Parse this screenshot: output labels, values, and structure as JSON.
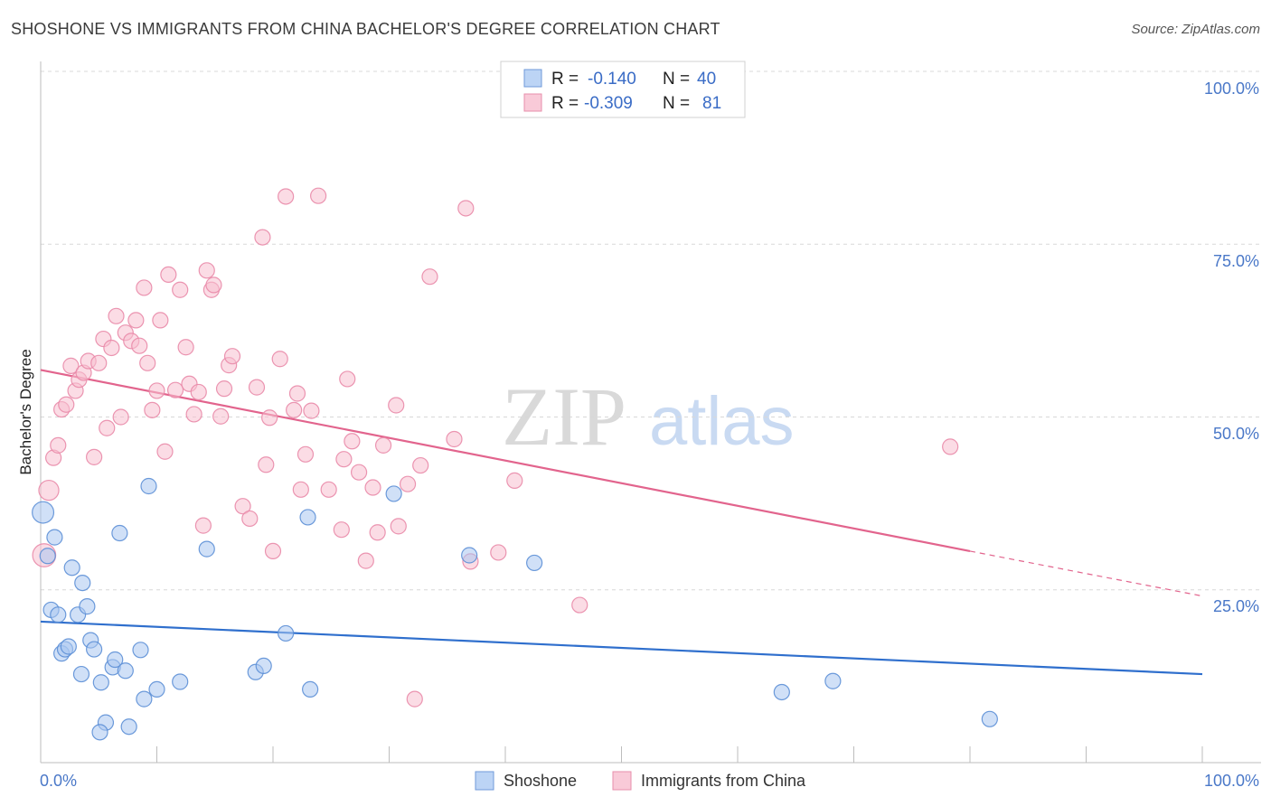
{
  "header": {
    "title": "SHOSHONE VS IMMIGRANTS FROM CHINA BACHELOR'S DEGREE CORRELATION CHART",
    "source": "Source: ZipAtlas.com"
  },
  "watermark": {
    "zip": "ZIP",
    "atlas": "atlas"
  },
  "legend_top": {
    "rows": [
      {
        "r_label": "R =",
        "r_value": "-0.140",
        "n_label": "N =",
        "n_value": "40",
        "color": "#9fc0ef"
      },
      {
        "r_label": "R =",
        "r_value": "-0.309",
        "n_label": "N =",
        "n_value": "81",
        "color": "#f4b8ca"
      }
    ]
  },
  "legend_bottom": {
    "items": [
      "Shoshone",
      "Immigrants from China"
    ]
  },
  "colors": {
    "shoshone_fill": "#a9c7f0",
    "shoshone_stroke": "#5c8fd6",
    "shoshone_line": "#2f6fcd",
    "china_fill": "#f7bfd0",
    "china_stroke": "#e98aa8",
    "china_line": "#e2648d",
    "grid": "#d8d8d8",
    "axis_text": "#4a78c8"
  },
  "chart_data": {
    "type": "scatter",
    "title": "SHOSHONE VS IMMIGRANTS FROM CHINA BACHELOR'S DEGREE CORRELATION CHART",
    "xlabel": "",
    "ylabel": "Bachelor's Degree",
    "xlim": [
      0,
      100
    ],
    "ylim": [
      0,
      100
    ],
    "x_tick_labels": [
      "0.0%",
      "100.0%"
    ],
    "y_tick_labels": [
      "100.0%",
      "75.0%",
      "50.0%",
      "25.0%"
    ],
    "y_ticks": [
      100,
      75,
      50,
      25
    ],
    "grid": true,
    "legend_position": "top-center",
    "series": [
      {
        "name": "Shoshone",
        "r": -0.14,
        "n": 40,
        "trend": {
          "x": [
            0,
            100
          ],
          "y": [
            20.4,
            12.8
          ]
        },
        "points": [
          {
            "x": 0.2,
            "y": 36.2,
            "s": 1.4
          },
          {
            "x": 0.6,
            "y": 29.9
          },
          {
            "x": 0.9,
            "y": 22.1
          },
          {
            "x": 1.2,
            "y": 32.6
          },
          {
            "x": 1.5,
            "y": 21.4
          },
          {
            "x": 1.8,
            "y": 15.8
          },
          {
            "x": 2.1,
            "y": 16.4
          },
          {
            "x": 2.4,
            "y": 16.8
          },
          {
            "x": 2.7,
            "y": 28.2
          },
          {
            "x": 3.2,
            "y": 21.4
          },
          {
            "x": 3.5,
            "y": 12.8
          },
          {
            "x": 3.6,
            "y": 26.0
          },
          {
            "x": 4.0,
            "y": 22.6
          },
          {
            "x": 4.3,
            "y": 17.7
          },
          {
            "x": 4.6,
            "y": 16.4
          },
          {
            "x": 5.2,
            "y": 11.6
          },
          {
            "x": 5.6,
            "y": 5.8
          },
          {
            "x": 5.1,
            "y": 4.4
          },
          {
            "x": 6.2,
            "y": 13.8
          },
          {
            "x": 6.4,
            "y": 14.9
          },
          {
            "x": 6.8,
            "y": 33.2
          },
          {
            "x": 7.3,
            "y": 13.3
          },
          {
            "x": 7.6,
            "y": 5.2
          },
          {
            "x": 8.6,
            "y": 16.3
          },
          {
            "x": 8.9,
            "y": 9.2
          },
          {
            "x": 9.3,
            "y": 40.0
          },
          {
            "x": 10.0,
            "y": 10.6
          },
          {
            "x": 12.0,
            "y": 11.7
          },
          {
            "x": 14.3,
            "y": 30.9
          },
          {
            "x": 18.5,
            "y": 13.1
          },
          {
            "x": 19.2,
            "y": 14.0
          },
          {
            "x": 21.1,
            "y": 18.7
          },
          {
            "x": 23.0,
            "y": 35.5
          },
          {
            "x": 23.2,
            "y": 10.6
          },
          {
            "x": 30.4,
            "y": 38.9
          },
          {
            "x": 36.9,
            "y": 30.0
          },
          {
            "x": 42.5,
            "y": 28.9
          },
          {
            "x": 63.8,
            "y": 10.2
          },
          {
            "x": 68.2,
            "y": 11.8
          },
          {
            "x": 81.7,
            "y": 6.3
          }
        ]
      },
      {
        "name": "Immigrants from China",
        "r": -0.309,
        "n": 81,
        "trend": {
          "x": [
            0,
            80
          ],
          "y": [
            56.8,
            30.6
          ]
        },
        "trend_dashed": {
          "x": [
            80,
            100
          ],
          "y": [
            30.6,
            24.1
          ]
        },
        "points": [
          {
            "x": 0.3,
            "y": 30.0,
            "s": 1.5
          },
          {
            "x": 0.7,
            "y": 39.4,
            "s": 1.3
          },
          {
            "x": 1.1,
            "y": 44.1
          },
          {
            "x": 1.5,
            "y": 45.9
          },
          {
            "x": 1.8,
            "y": 51.1
          },
          {
            "x": 2.2,
            "y": 51.8
          },
          {
            "x": 2.6,
            "y": 57.4
          },
          {
            "x": 3.0,
            "y": 53.8
          },
          {
            "x": 3.3,
            "y": 55.4
          },
          {
            "x": 3.7,
            "y": 56.4
          },
          {
            "x": 4.1,
            "y": 58.1
          },
          {
            "x": 4.6,
            "y": 44.2
          },
          {
            "x": 5.0,
            "y": 57.8
          },
          {
            "x": 5.4,
            "y": 61.3
          },
          {
            "x": 5.7,
            "y": 48.4
          },
          {
            "x": 6.1,
            "y": 60.0
          },
          {
            "x": 6.5,
            "y": 64.6
          },
          {
            "x": 6.9,
            "y": 50.0
          },
          {
            "x": 7.3,
            "y": 62.2
          },
          {
            "x": 7.8,
            "y": 61.0
          },
          {
            "x": 8.2,
            "y": 64.0
          },
          {
            "x": 8.5,
            "y": 60.3
          },
          {
            "x": 8.9,
            "y": 68.7
          },
          {
            "x": 9.2,
            "y": 57.8
          },
          {
            "x": 9.6,
            "y": 51.0
          },
          {
            "x": 10.0,
            "y": 53.8
          },
          {
            "x": 10.3,
            "y": 64.0
          },
          {
            "x": 10.7,
            "y": 45.0
          },
          {
            "x": 11.0,
            "y": 70.6
          },
          {
            "x": 11.6,
            "y": 53.9
          },
          {
            "x": 12.0,
            "y": 68.4
          },
          {
            "x": 12.5,
            "y": 60.1
          },
          {
            "x": 12.8,
            "y": 54.8
          },
          {
            "x": 13.2,
            "y": 50.4
          },
          {
            "x": 13.6,
            "y": 53.6
          },
          {
            "x": 14.0,
            "y": 34.3
          },
          {
            "x": 14.3,
            "y": 71.2
          },
          {
            "x": 14.7,
            "y": 68.4
          },
          {
            "x": 14.9,
            "y": 69.1
          },
          {
            "x": 15.5,
            "y": 50.1
          },
          {
            "x": 15.8,
            "y": 54.1
          },
          {
            "x": 16.2,
            "y": 57.5
          },
          {
            "x": 16.5,
            "y": 58.8
          },
          {
            "x": 17.4,
            "y": 37.1
          },
          {
            "x": 18.0,
            "y": 35.3
          },
          {
            "x": 18.6,
            "y": 54.3
          },
          {
            "x": 19.1,
            "y": 76.0
          },
          {
            "x": 19.4,
            "y": 43.1
          },
          {
            "x": 19.7,
            "y": 49.9
          },
          {
            "x": 20.0,
            "y": 30.6
          },
          {
            "x": 20.6,
            "y": 58.4
          },
          {
            "x": 21.1,
            "y": 81.9
          },
          {
            "x": 21.8,
            "y": 51.0
          },
          {
            "x": 22.1,
            "y": 53.4
          },
          {
            "x": 22.4,
            "y": 39.5
          },
          {
            "x": 22.8,
            "y": 44.6
          },
          {
            "x": 23.3,
            "y": 50.9
          },
          {
            "x": 23.9,
            "y": 82.0
          },
          {
            "x": 24.8,
            "y": 39.5
          },
          {
            "x": 25.9,
            "y": 33.7
          },
          {
            "x": 26.1,
            "y": 43.9
          },
          {
            "x": 26.4,
            "y": 55.5
          },
          {
            "x": 26.8,
            "y": 46.5
          },
          {
            "x": 27.4,
            "y": 42.0
          },
          {
            "x": 28.0,
            "y": 29.2
          },
          {
            "x": 28.6,
            "y": 39.8
          },
          {
            "x": 29.0,
            "y": 33.3
          },
          {
            "x": 29.5,
            "y": 45.9
          },
          {
            "x": 30.6,
            "y": 51.7
          },
          {
            "x": 30.8,
            "y": 34.2
          },
          {
            "x": 31.6,
            "y": 40.3
          },
          {
            "x": 32.2,
            "y": 9.2
          },
          {
            "x": 32.7,
            "y": 43.0
          },
          {
            "x": 33.5,
            "y": 70.3
          },
          {
            "x": 35.6,
            "y": 46.8
          },
          {
            "x": 36.6,
            "y": 80.2
          },
          {
            "x": 37.0,
            "y": 29.1
          },
          {
            "x": 39.4,
            "y": 30.4
          },
          {
            "x": 40.8,
            "y": 40.8
          },
          {
            "x": 46.4,
            "y": 22.8
          },
          {
            "x": 78.3,
            "y": 45.7
          }
        ]
      }
    ]
  }
}
